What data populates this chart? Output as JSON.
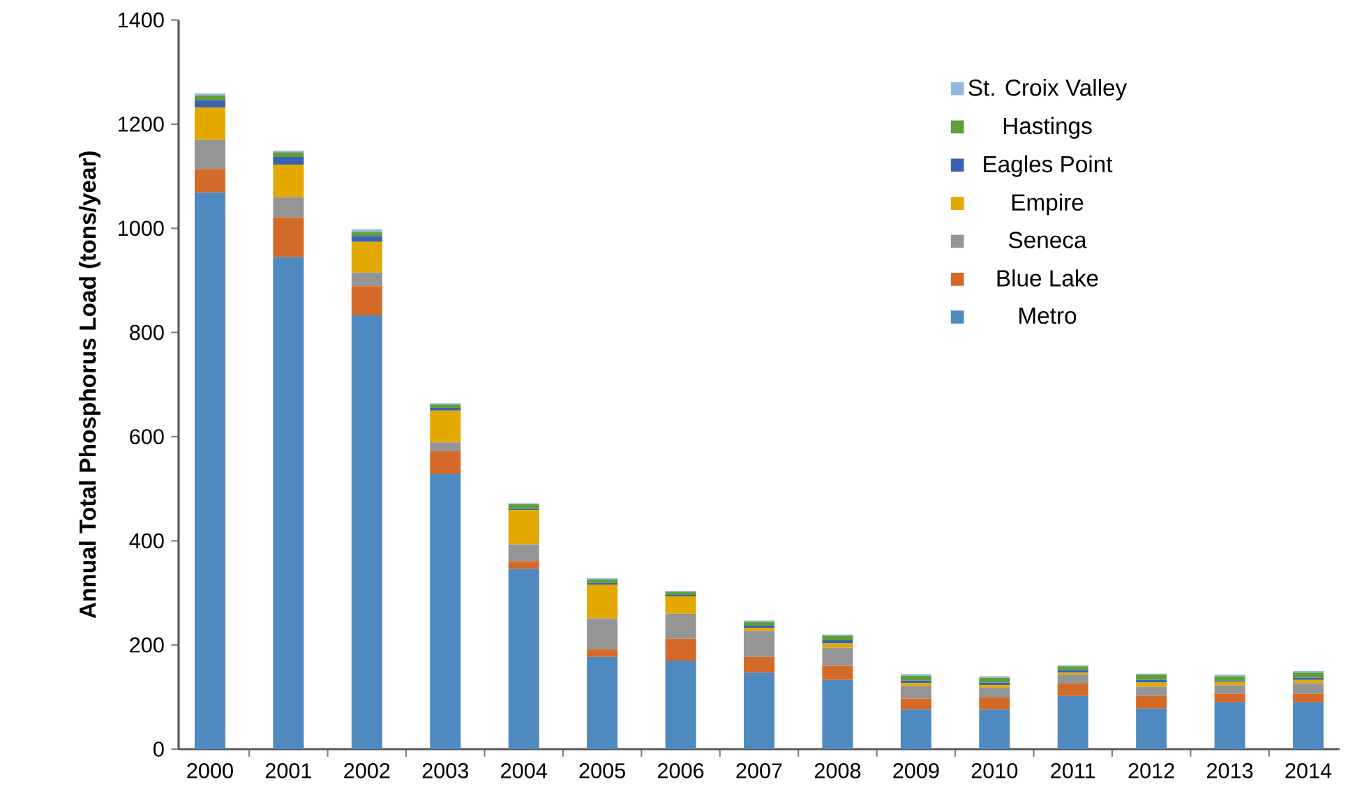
{
  "chart_data": {
    "type": "bar",
    "stacked": true,
    "ylabel": "Annual Total Phosphorus Load (tons/year)",
    "categories": [
      "2000",
      "2001",
      "2002",
      "2003",
      "2004",
      "2005",
      "2006",
      "2007",
      "2008",
      "2009",
      "2010",
      "2011",
      "2012",
      "2013",
      "2014"
    ],
    "series": [
      {
        "name": "Metro",
        "color": "#4e89c0",
        "values": [
          1069,
          945,
          833,
          529,
          346,
          177,
          170,
          147,
          133,
          76,
          76,
          102,
          78,
          90,
          90
        ]
      },
      {
        "name": "Blue Lake",
        "color": "#d46a27",
        "values": [
          45,
          76,
          56,
          43,
          15,
          15,
          42,
          30,
          27,
          21,
          23,
          24,
          24,
          16,
          16
        ]
      },
      {
        "name": "Seneca",
        "color": "#959595",
        "values": [
          56,
          39,
          26,
          17,
          32,
          59,
          48,
          50,
          35,
          24,
          19,
          17,
          18,
          17,
          21
        ]
      },
      {
        "name": "Empire",
        "color": "#e3a900",
        "values": [
          62,
          62,
          59,
          61,
          66,
          65,
          33,
          6,
          8,
          6,
          5,
          4,
          8,
          6,
          6
        ]
      },
      {
        "name": "Eagles Point",
        "color": "#3a62b0",
        "values": [
          14,
          15,
          11,
          5,
          2,
          3,
          3,
          4,
          6,
          5,
          5,
          5,
          5,
          2,
          4
        ]
      },
      {
        "name": "Hastings",
        "color": "#5f9e3b",
        "values": [
          9,
          9,
          8,
          7,
          9,
          7,
          6,
          7,
          9,
          9,
          9,
          7,
          10,
          9,
          10
        ]
      },
      {
        "name": "St. Croix Valley",
        "color": "#94b9e0",
        "values": [
          4,
          3,
          5,
          2,
          2,
          2,
          2,
          3,
          2,
          3,
          3,
          2,
          2,
          3,
          3
        ]
      }
    ],
    "ylim": [
      0,
      1400
    ],
    "yticks": [
      0,
      200,
      400,
      600,
      800,
      1000,
      1200,
      1400
    ],
    "legend": "top right"
  }
}
